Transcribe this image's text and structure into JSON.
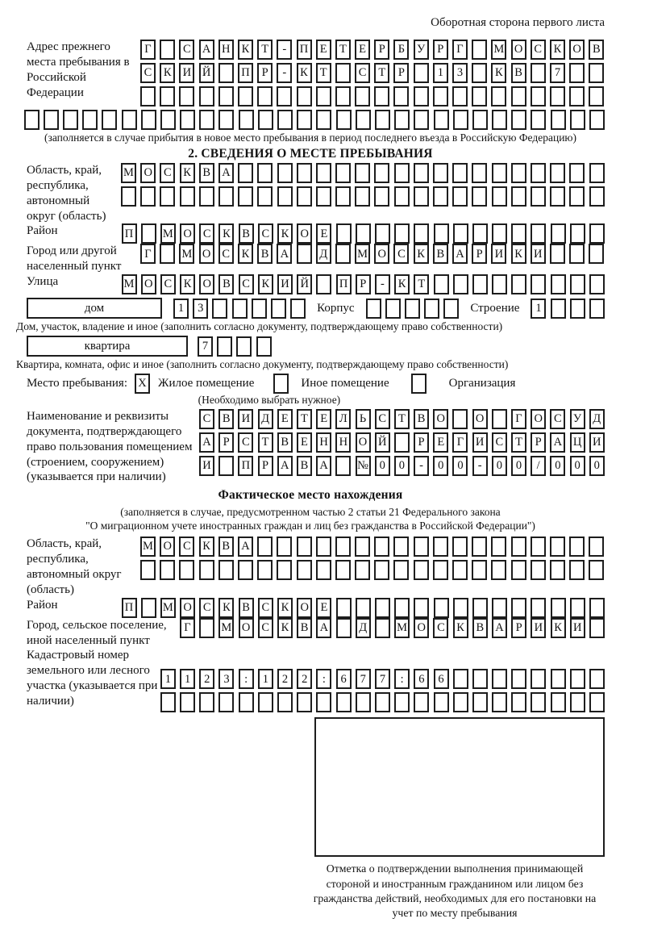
{
  "header": {
    "back_side_note": "Оборотная сторона первого листа"
  },
  "prev_address": {
    "label": "Адрес прежнего места пребывания в Российской Федерации",
    "rows": [
      {
        "len": 24,
        "text": "Г САНКТ-ПЕТЕРБУРГ МОСКОВ"
      },
      {
        "len": 24,
        "text": "СКИЙ ПР-КТ СТР 13 КВ 7"
      },
      {
        "len": 24,
        "text": ""
      },
      {
        "len": 30,
        "text": ""
      }
    ],
    "note": "(заполняется в случае прибытия в новое место пребывания в период последнего въезда в Российскую Федерацию)"
  },
  "section2": {
    "title": "2. СВЕДЕНИЯ О МЕСТЕ ПРЕБЫВАНИЯ",
    "region": {
      "label": "Область, край, республика, автономный округ (область)",
      "rows": [
        {
          "len": 25,
          "text": "МОСКВА"
        },
        {
          "len": 25,
          "text": ""
        }
      ]
    },
    "district": {
      "label": "Район",
      "row": {
        "len": 25,
        "text": "П МОСКВСКОЕ"
      }
    },
    "city": {
      "label": "Город или другой населенный пункт",
      "row": {
        "len": 24,
        "text": "Г МОСКВА Д МОСКВАРИКИ"
      }
    },
    "street": {
      "label": "Улица",
      "row": {
        "len": 25,
        "text": "МОСКОВСКИЙ ПР-КТ"
      }
    },
    "house": {
      "field_label": "дом",
      "row": {
        "len": 7,
        "text": "13"
      },
      "korpus_label": "Корпус",
      "korpus_row": {
        "len": 5,
        "text": ""
      },
      "stroenie_label": "Строение",
      "stroenie_row": {
        "len": 4,
        "text": "1"
      },
      "note": "Дом, участок, владение и иное (заполнить согласно документу, подтверждающему право собственности)"
    },
    "apartment": {
      "field_label": "квартира",
      "row": {
        "len": 4,
        "text": "7"
      },
      "note": "Квартира, комната, офис и иное (заполнить согласно документу, подтверждающему право собственности)"
    },
    "stay_type": {
      "label": "Место пребывания:",
      "options": [
        {
          "mark": {
            "len": 1,
            "text": "X"
          },
          "label": "Жилое помещение"
        },
        {
          "mark": {
            "len": 1,
            "text": ""
          },
          "label": "Иное помещение"
        },
        {
          "mark": {
            "len": 1,
            "text": ""
          },
          "label": "Организация"
        }
      ],
      "note": "(Необходимо выбрать нужное)"
    },
    "document": {
      "label": "Наименование и реквизиты документа, подтверждающего право пользования помещением (строением, сооружением) (указывается при наличии)",
      "rows": [
        {
          "len": 21,
          "text": "СВИДЕТЕЛЬСТВО О ГОСУД"
        },
        {
          "len": 21,
          "text": "АРСТВЕННОЙ РЕГИСТРАЦИ"
        },
        {
          "len": 21,
          "text": "И ПРАВА №00-00-00/000"
        }
      ]
    }
  },
  "actual_location": {
    "title": "Фактическое место нахождения",
    "note_line1": "(заполняется в случае, предусмотренном частью 2 статьи 21 Федерального закона",
    "note_line2": "\"О миграционном учете иностранных граждан и лиц без гражданства в Российской Федерации\")",
    "region": {
      "label": "Область, край, республика, автономный округ (область)",
      "rows": [
        {
          "len": 24,
          "text": "МОСКВА"
        },
        {
          "len": 24,
          "text": ""
        }
      ]
    },
    "district": {
      "label": "Район",
      "row": {
        "len": 25,
        "text": "П МОСКВСКОЕ"
      }
    },
    "city": {
      "label": "Город, сельское поселение, иной населенный пункт",
      "row": {
        "len": 22,
        "text": "Г МОСКВА Д МОСКВАРИКИ"
      }
    },
    "cadastral": {
      "label": "Кадастровый номер земельного или лесного участка (указывается при наличии)",
      "rows": [
        {
          "len": 23,
          "text": "1123:122:677:66"
        },
        {
          "len": 23,
          "text": ""
        }
      ]
    }
  },
  "stamp": {
    "caption": "Отметка о подтверждении выполнения принимающей стороной и иностранным гражданином или лицом без гражданства действий, необходимых для его постановки на учет по месту пребывания"
  }
}
